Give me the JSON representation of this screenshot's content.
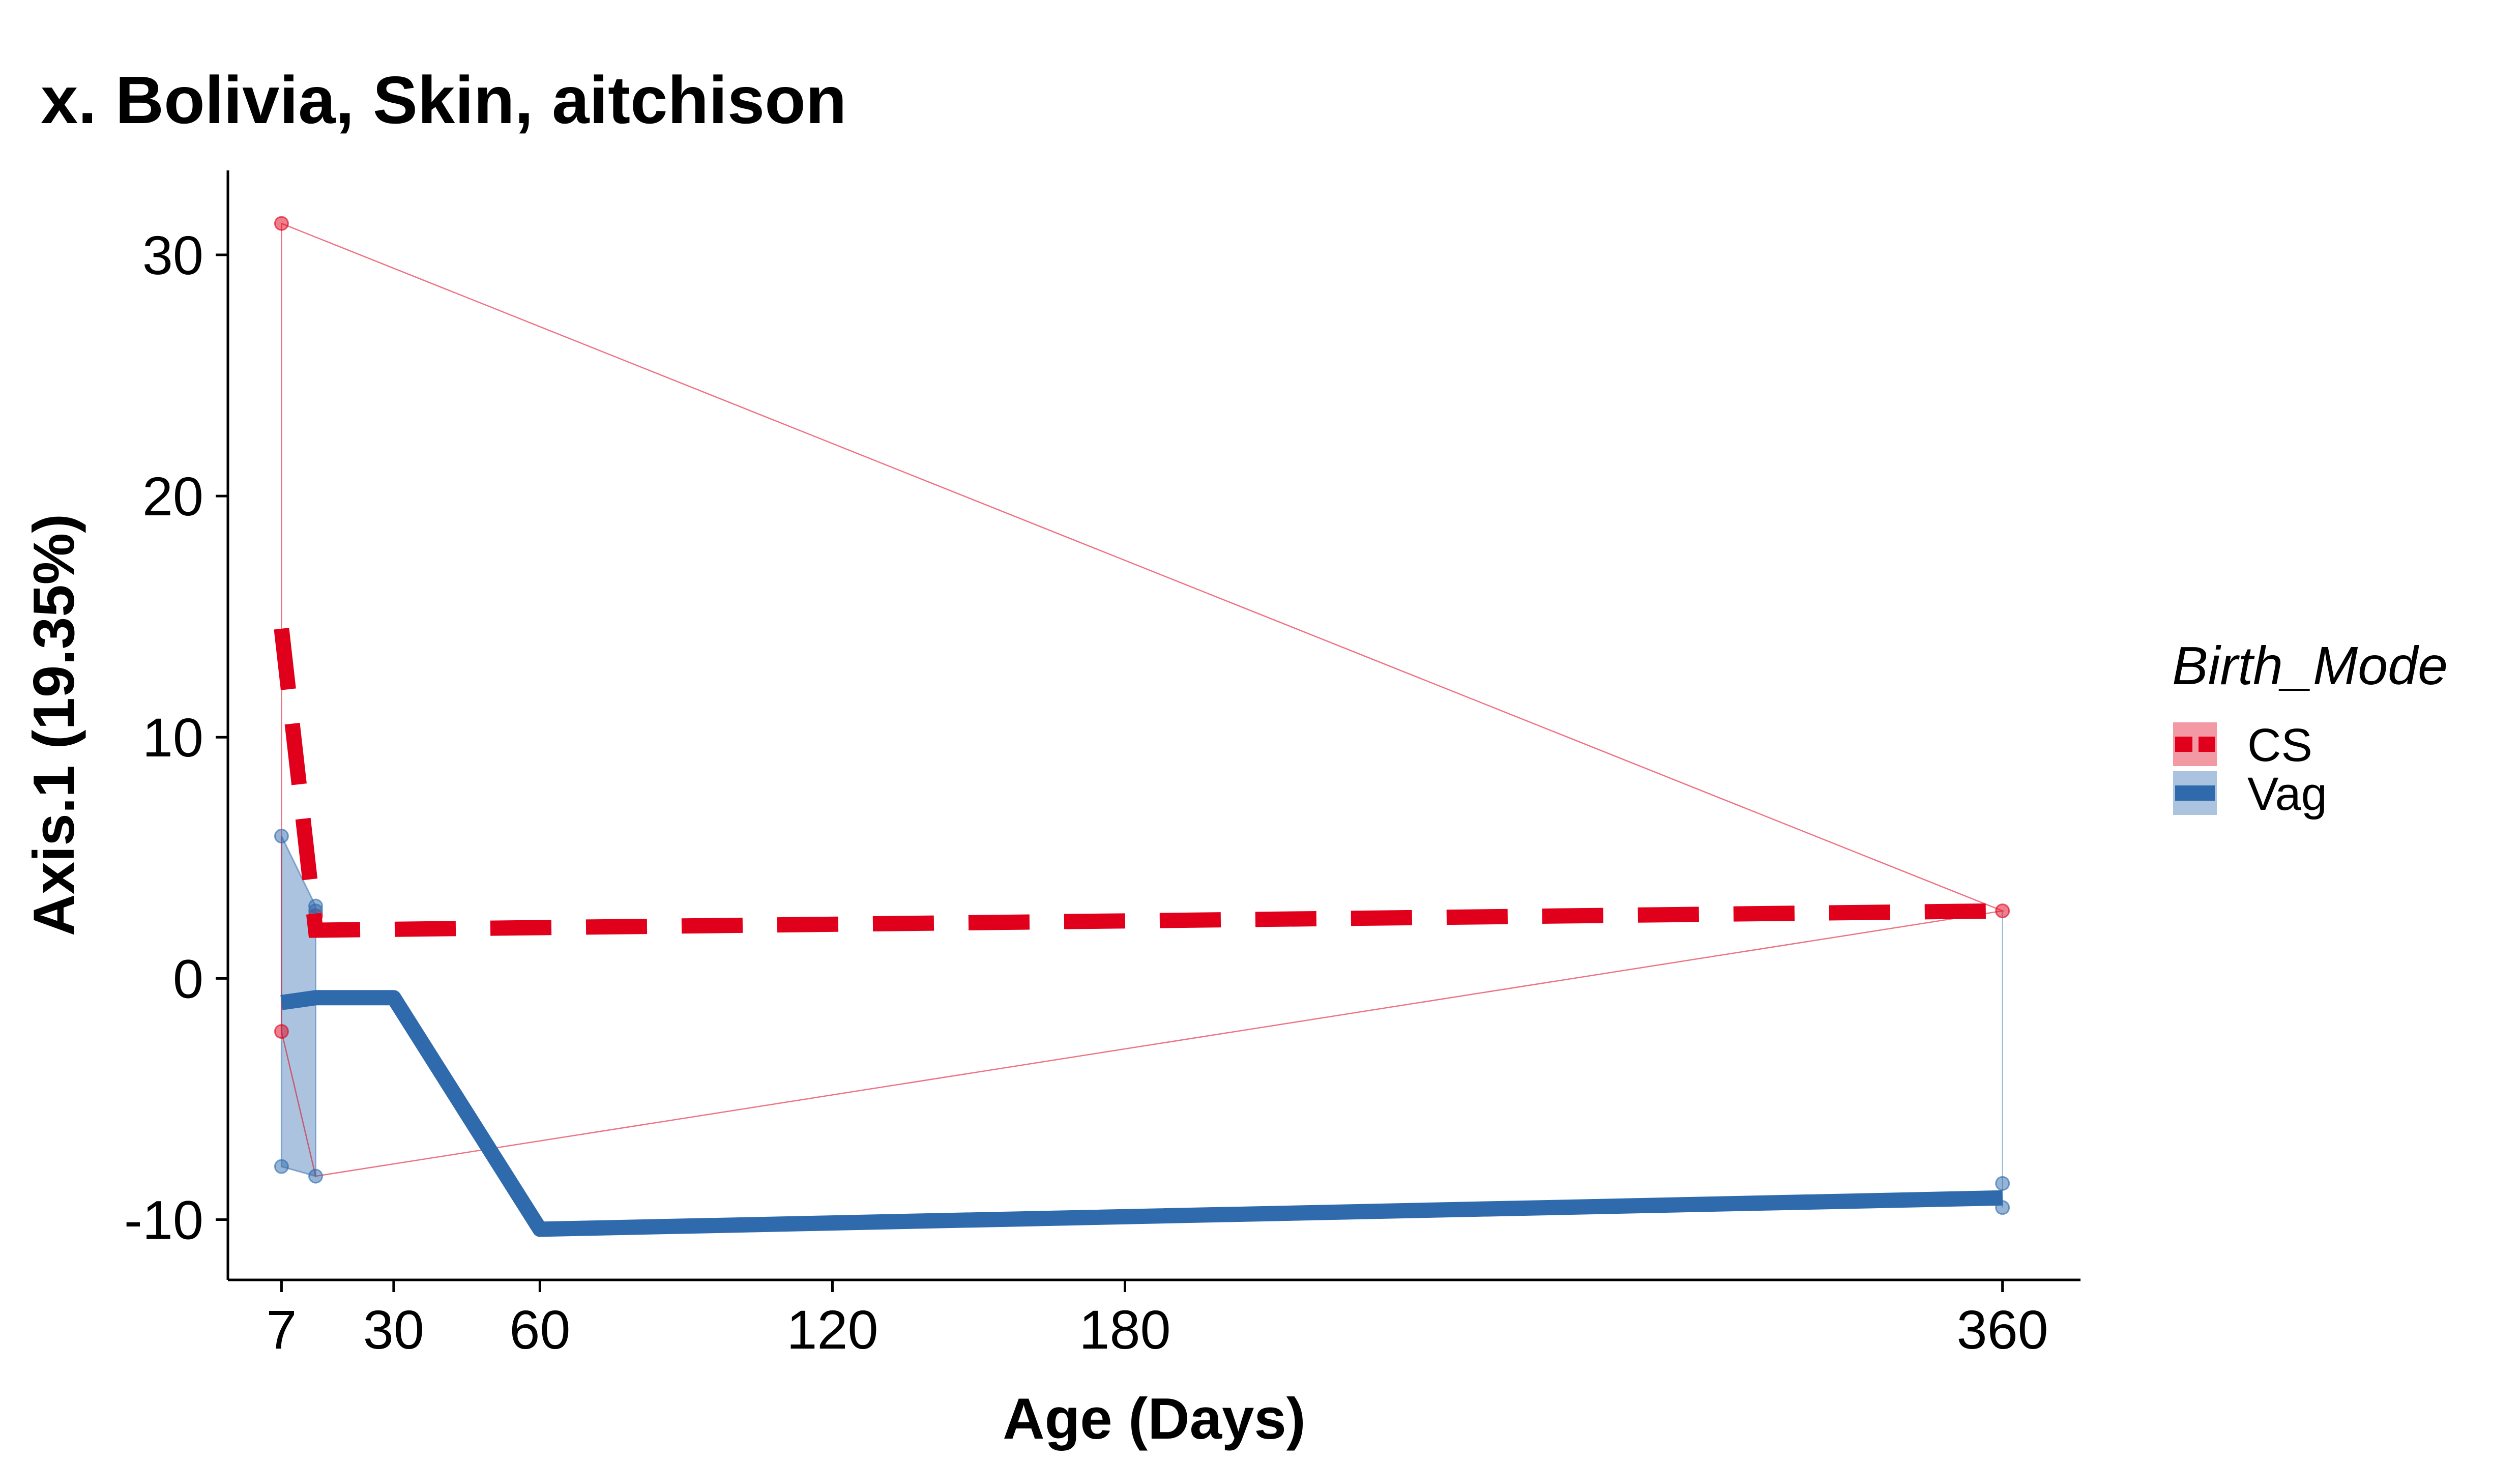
{
  "chart_data": {
    "type": "line",
    "title": "x. Bolivia, Skin, aitchison",
    "xlabel": "Age (Days)",
    "ylabel": "Axis.1 (19.35%)",
    "xlim": [
      -4,
      376
    ],
    "ylim": [
      -12.5,
      33.5
    ],
    "x_ticks": [
      7,
      30,
      60,
      120,
      180,
      360
    ],
    "x_tick_labels": [
      "7",
      "30",
      "60",
      "120",
      "180",
      "360"
    ],
    "y_ticks": [
      -10,
      0,
      10,
      20,
      30
    ],
    "y_tick_labels": [
      "-10",
      "0",
      "10",
      "20",
      "30"
    ],
    "grid": false,
    "legend": {
      "title": "Birth_Mode",
      "position": "right"
    },
    "series": [
      {
        "name": "CS",
        "color": "#e0001b",
        "dash": "dashed",
        "fitted": [
          {
            "x": 7,
            "y": 14.5
          },
          {
            "x": 14,
            "y": 2.0
          },
          {
            "x": 360,
            "y": 2.8
          }
        ],
        "points": [
          {
            "x": 7,
            "y": 31.3
          },
          {
            "x": 7,
            "y": -2.2
          },
          {
            "x": 14,
            "y": 2.6
          },
          {
            "x": 360,
            "y": 2.8
          }
        ],
        "hull": [
          {
            "x": 7,
            "y": 31.3
          },
          {
            "x": 360,
            "y": 2.8
          },
          {
            "x": 14,
            "y": -8.2
          },
          {
            "x": 7,
            "y": -2.2
          }
        ]
      },
      {
        "name": "Vag",
        "color": "#2e6aac",
        "dash": "solid",
        "fitted": [
          {
            "x": 7,
            "y": -1.0
          },
          {
            "x": 14,
            "y": -0.8
          },
          {
            "x": 30,
            "y": -0.8
          },
          {
            "x": 60,
            "y": -10.4
          },
          {
            "x": 360,
            "y": -9.1
          }
        ],
        "points": [
          {
            "x": 7,
            "y": 5.9
          },
          {
            "x": 7,
            "y": -7.8
          },
          {
            "x": 14,
            "y": 3.0
          },
          {
            "x": 14,
            "y": 2.8
          },
          {
            "x": 14,
            "y": -8.2
          },
          {
            "x": 360,
            "y": -8.5
          },
          {
            "x": 360,
            "y": -9.5
          }
        ],
        "band": [
          {
            "x": 7,
            "y": 5.9
          },
          {
            "x": 14,
            "y": 3.0
          },
          {
            "x": 14,
            "y": -8.2
          },
          {
            "x": 7,
            "y": -7.8
          }
        ],
        "hull": [
          {
            "x": 360,
            "y": 2.8
          },
          {
            "x": 360,
            "y": -9.5
          }
        ]
      }
    ]
  }
}
